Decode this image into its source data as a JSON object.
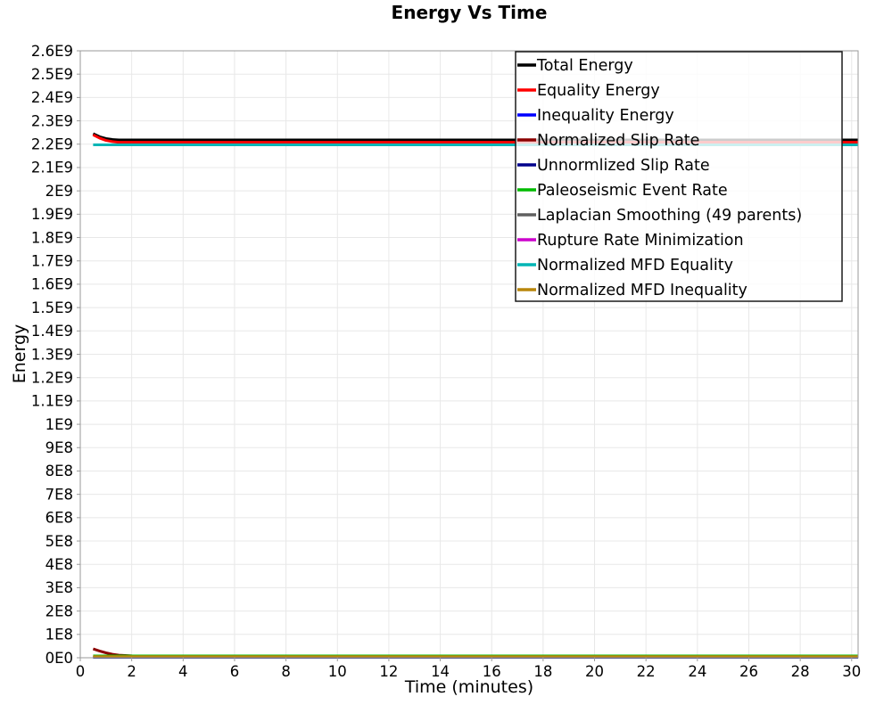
{
  "chart_data": {
    "type": "line",
    "title": "Energy Vs Time",
    "xlabel": "Time (minutes)",
    "ylabel": "Energy",
    "xlim": [
      0,
      30.25
    ],
    "ylim": [
      0,
      2600000000.0
    ],
    "grid": true,
    "frame_color": "#9a9a9a",
    "grid_color": "#e8e8e8",
    "background_color": "#ffffff",
    "legend_position": "top-right-inside",
    "legend_border_color": "#1a1a1a",
    "legend_bg_opacity": 0.8,
    "x_ticks": [
      0,
      2,
      4,
      6,
      8,
      10,
      12,
      14,
      16,
      18,
      20,
      22,
      24,
      26,
      28,
      30
    ],
    "y_ticks": {
      "step": 100000000.0,
      "labels": [
        "0E0",
        "1E8",
        "2E8",
        "3E8",
        "4E8",
        "5E8",
        "6E8",
        "7E8",
        "8E8",
        "9E8",
        "1E9",
        "1.1E9",
        "1.2E9",
        "1.3E9",
        "1.4E9",
        "1.5E9",
        "1.6E9",
        "1.7E9",
        "1.8E9",
        "1.9E9",
        "2E9",
        "2.1E9",
        "2.2E9",
        "2.3E9",
        "2.4E9",
        "2.5E9",
        "2.6E9"
      ]
    },
    "series": [
      {
        "name": "Total Energy",
        "color": "#000000",
        "width": 3,
        "x": [
          0.5,
          0.75,
          1.0,
          1.25,
          1.5,
          2.0,
          3.0,
          30.25
        ],
        "y": [
          2245000000.0,
          2232000000.0,
          2224000000.0,
          2220000000.0,
          2218000000.0,
          2218000000.0,
          2218000000.0,
          2218000000.0
        ]
      },
      {
        "name": "Equality Energy",
        "color": "#ff0000",
        "width": 3,
        "x": [
          0.5,
          0.75,
          1.0,
          1.25,
          1.5,
          2.0,
          3.0,
          30.25
        ],
        "y": [
          2240000000.0,
          2226000000.0,
          2216000000.0,
          2211000000.0,
          2208000000.0,
          2208000000.0,
          2208000000.0,
          2208000000.0
        ]
      },
      {
        "name": "Inequality Energy",
        "color": "#0000ff",
        "width": 2.5,
        "x": [
          0.5,
          30.25
        ],
        "y": [
          1500000.0,
          1500000.0
        ]
      },
      {
        "name": "Normalized Slip Rate",
        "color": "#8b0000",
        "width": 3,
        "x": [
          0.5,
          0.75,
          1.0,
          1.25,
          1.5,
          2.0,
          2.5,
          3.0,
          30.25
        ],
        "y": [
          38000000.0,
          29000000.0,
          21000000.0,
          15000000.0,
          11000000.0,
          8000000.0,
          7000000.0,
          6500000.0,
          6500000.0
        ]
      },
      {
        "name": "Unnormlized Slip Rate",
        "color": "#00008b",
        "width": 2.5,
        "x": [
          0.5,
          30.25
        ],
        "y": [
          1000000.0,
          1000000.0
        ]
      },
      {
        "name": "Paleoseismic Event Rate",
        "color": "#00bb00",
        "width": 2.5,
        "x": [
          0.5,
          30.25
        ],
        "y": [
          8500000.0,
          8500000.0
        ]
      },
      {
        "name": "Laplacian Smoothing (49 parents)",
        "color": "#606060",
        "width": 2.5,
        "x": [
          0.5,
          30.25
        ],
        "y": [
          2500000.0,
          2500000.0
        ]
      },
      {
        "name": "Rupture Rate Minimization",
        "color": "#cc00cc",
        "width": 2.5,
        "x": [
          0.5,
          30.25
        ],
        "y": [
          3500000.0,
          3500000.0
        ]
      },
      {
        "name": "Normalized MFD Equality",
        "color": "#00b5b5",
        "width": 3,
        "x": [
          0.5,
          30.25
        ],
        "y": [
          2197000000.0,
          2197000000.0
        ]
      },
      {
        "name": "Normalized MFD Inequality",
        "color": "#b8860b",
        "width": 3,
        "x": [
          0.5,
          30.25
        ],
        "y": [
          5000000.0,
          5000000.0
        ]
      }
    ]
  }
}
